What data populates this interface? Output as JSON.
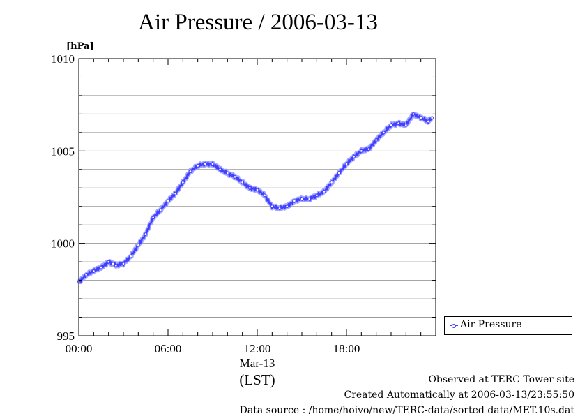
{
  "chart_data": {
    "type": "line",
    "title": "Air Pressure / 2006-03-13",
    "unit_label": "[hPa]",
    "xlabel": "(LST)",
    "date_label": "Mar-13",
    "x_tick_labels": [
      "00:00",
      "06:00",
      "12:00",
      "18:00"
    ],
    "y_tick_labels": [
      "995",
      "1000",
      "1005",
      "1010"
    ],
    "x_range_hours": [
      0,
      23.75
    ],
    "ylim": [
      995,
      1010
    ],
    "y_major_ticks": [
      995,
      1000,
      1005,
      1010
    ],
    "y_minor_step": 1,
    "grid": true,
    "legend_placement": "bottom-right outside plot",
    "legend": [
      "Air Pressure"
    ],
    "series_color": "#4040ff",
    "series": [
      {
        "name": "Air Pressure",
        "x_hours": [
          0.0,
          0.5,
          1.0,
          1.5,
          2.0,
          2.3,
          2.5,
          3.0,
          3.5,
          4.0,
          4.5,
          5.0,
          5.5,
          6.0,
          6.5,
          7.0,
          7.5,
          8.0,
          8.5,
          9.0,
          9.5,
          10.0,
          10.5,
          11.0,
          11.5,
          12.0,
          12.5,
          13.0,
          13.5,
          14.0,
          14.5,
          15.0,
          15.5,
          16.0,
          16.5,
          17.0,
          17.5,
          18.0,
          18.5,
          19.0,
          19.5,
          20.0,
          20.5,
          21.0,
          21.5,
          22.0,
          22.5,
          23.0,
          23.5,
          23.75
        ],
        "values": [
          997.9,
          998.3,
          998.5,
          998.7,
          999.0,
          998.9,
          998.8,
          998.9,
          999.3,
          999.9,
          1000.5,
          1001.4,
          1001.8,
          1002.3,
          1002.7,
          1003.3,
          1003.9,
          1004.2,
          1004.3,
          1004.3,
          1004.0,
          1003.8,
          1003.6,
          1003.3,
          1003.0,
          1002.9,
          1002.6,
          1002.0,
          1001.9,
          1002.0,
          1002.3,
          1002.4,
          1002.4,
          1002.6,
          1002.8,
          1003.3,
          1003.8,
          1004.3,
          1004.7,
          1005.0,
          1005.1,
          1005.6,
          1006.0,
          1006.4,
          1006.5,
          1006.4,
          1007.0,
          1006.8,
          1006.6,
          1006.8
        ]
      }
    ]
  },
  "footer": {
    "line1": "Observed at TERC Tower site",
    "line2": "Created Automatically at 2006-03-13/23:55:50",
    "line3": "Data source : /home/hoivo/new/TERC-data/sorted  data/MET.10s.dat"
  }
}
